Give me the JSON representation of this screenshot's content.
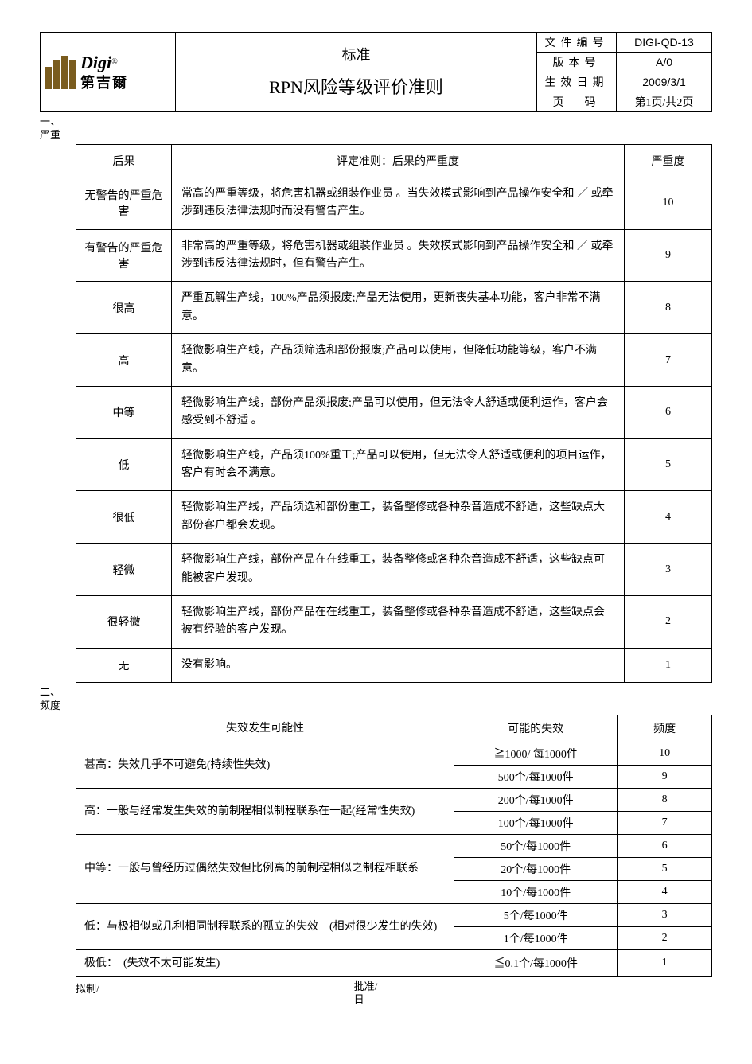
{
  "header": {
    "logo_en": "Digi",
    "logo_sup": "®",
    "logo_cn": "第吉爾",
    "title_top": "标准",
    "title_main": "RPN风险等级评价准则",
    "meta_labels": {
      "doc_no": "文件编号",
      "version": "版本号",
      "eff_date": "生效日期",
      "page": "页　码"
    },
    "meta_values": {
      "doc_no": "DIGI-QD-13",
      "version": "A/0",
      "eff_date": "2009/3/1",
      "page": "第1页/共2页"
    }
  },
  "section1": {
    "num": "一、",
    "name": "严重"
  },
  "sev_table": {
    "headers": {
      "c1": "后果",
      "c2": "评定准则：后果的严重度",
      "c3": "严重度"
    },
    "rows": [
      {
        "c1": "无警告的严重危害",
        "c2": "常高的严重等级，将危害机器或组装作业员 。当失效模式影响到产品操作安全和 ／ 或牵涉到违反法律法规时而没有警告产生。",
        "c3": "10"
      },
      {
        "c1": "有警告的严重危害",
        "c2": "非常高的严重等级，将危害机器或组装作业员 。失效模式影响到产品操作安全和 ／ 或牵涉到违反法律法规时，但有警告产生。",
        "c3": "9"
      },
      {
        "c1": "很高",
        "c2": "严重瓦解生产线，100%产品须报废;产品无法使用，更新丧失基本功能，客户非常不满意。",
        "c3": "8"
      },
      {
        "c1": "高",
        "c2": "轻微影响生产线，产品须筛选和部份报废;产品可以使用，但降低功能等级，客户不满意。",
        "c3": "7"
      },
      {
        "c1": "中等",
        "c2": "轻微影响生产线，部份产品须报废;产品可以使用，但无法令人舒适或便利运作，客户会感受到不舒适 。",
        "c3": "6"
      },
      {
        "c1": "低",
        "c2": "轻微影响生产线，产品须100%重工;产品可以使用，但无法令人舒适或便利的项目运作，客户有时会不满意。",
        "c3": "5"
      },
      {
        "c1": "很低",
        "c2": "轻微影响生产线，产品须选和部份重工，装备整修或各种杂音造成不舒适，这些缺点大部份客户都会发现。",
        "c3": "4"
      },
      {
        "c1": "轻微",
        "c2": "轻微影响生产线，部份产品在在线重工，装备整修或各种杂音造成不舒适，这些缺点可能被客户发现。",
        "c3": "3"
      },
      {
        "c1": "很轻微",
        "c2": "轻微影响生产线，部份产品在在线重工，装备整修或各种杂音造成不舒适，这些缺点会被有经验的客户发现。",
        "c3": "2"
      },
      {
        "c1": "无",
        "c2": "没有影响。",
        "c3": "1"
      }
    ]
  },
  "section2": {
    "num": "二、",
    "name": "频度"
  },
  "freq_table": {
    "headers": {
      "f1": "失效发生可能性",
      "f2": "可能的失效",
      "f3": "频度"
    },
    "groups": [
      {
        "label": "甚高：失效几乎不可避免(持续性失效)",
        "rows": [
          {
            "f2": "≧1000/ 每1000件",
            "f3": "10"
          },
          {
            "f2": "500个/每1000件",
            "f3": "9"
          }
        ]
      },
      {
        "label": "高：一般与经常发生失效的前制程相似制程联系在一起(经常性失效)",
        "rows": [
          {
            "f2": "200个/每1000件",
            "f3": "8"
          },
          {
            "f2": "100个/每1000件",
            "f3": "7"
          }
        ]
      },
      {
        "label": "中等：一般与曾经历过偶然失效但比例高的前制程相似之制程相联系",
        "rows": [
          {
            "f2": "50个/每1000件",
            "f3": "6"
          },
          {
            "f2": "20个/每1000件",
            "f3": "5"
          },
          {
            "f2": "10个/每1000件",
            "f3": "4"
          }
        ]
      },
      {
        "label": "低：与极相似或几利相同制程联系的孤立的失效　(相对很少发生的失效)",
        "rows": [
          {
            "f2": "5个/每1000件",
            "f3": "3"
          },
          {
            "f2": "1个/每1000件",
            "f3": "2"
          }
        ]
      },
      {
        "label": "极低：　(失效不太可能发生)",
        "rows": [
          {
            "f2": "≦0.1个/每1000件",
            "f3": "1"
          }
        ]
      }
    ]
  },
  "footer": {
    "left": "拟制/",
    "right": "批准/日"
  }
}
